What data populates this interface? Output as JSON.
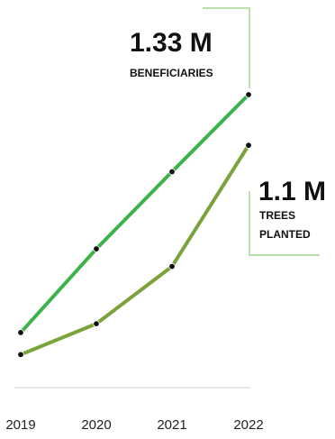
{
  "chart_data": {
    "type": "line",
    "x": [
      "2019",
      "2020",
      "2021",
      "2022"
    ],
    "series": [
      {
        "name": "BENEFICIARIES",
        "values": [
          0.25,
          0.63,
          0.98,
          1.33
        ],
        "color": "#3cb34a"
      },
      {
        "name": "TREES PLANTED",
        "values": [
          0.15,
          0.29,
          0.55,
          1.1
        ],
        "color": "#7aa33c"
      }
    ],
    "annotations": [
      {
        "series": 0,
        "value": "1.33 M",
        "label_lines": [
          "BENEFICIARIES"
        ]
      },
      {
        "series": 1,
        "value": "1.1 M",
        "label_lines": [
          "TREES",
          "PLANTED"
        ]
      }
    ],
    "title": "",
    "xlabel": "",
    "ylabel": "",
    "ylim": [
      0,
      1.35
    ],
    "grid": false
  }
}
